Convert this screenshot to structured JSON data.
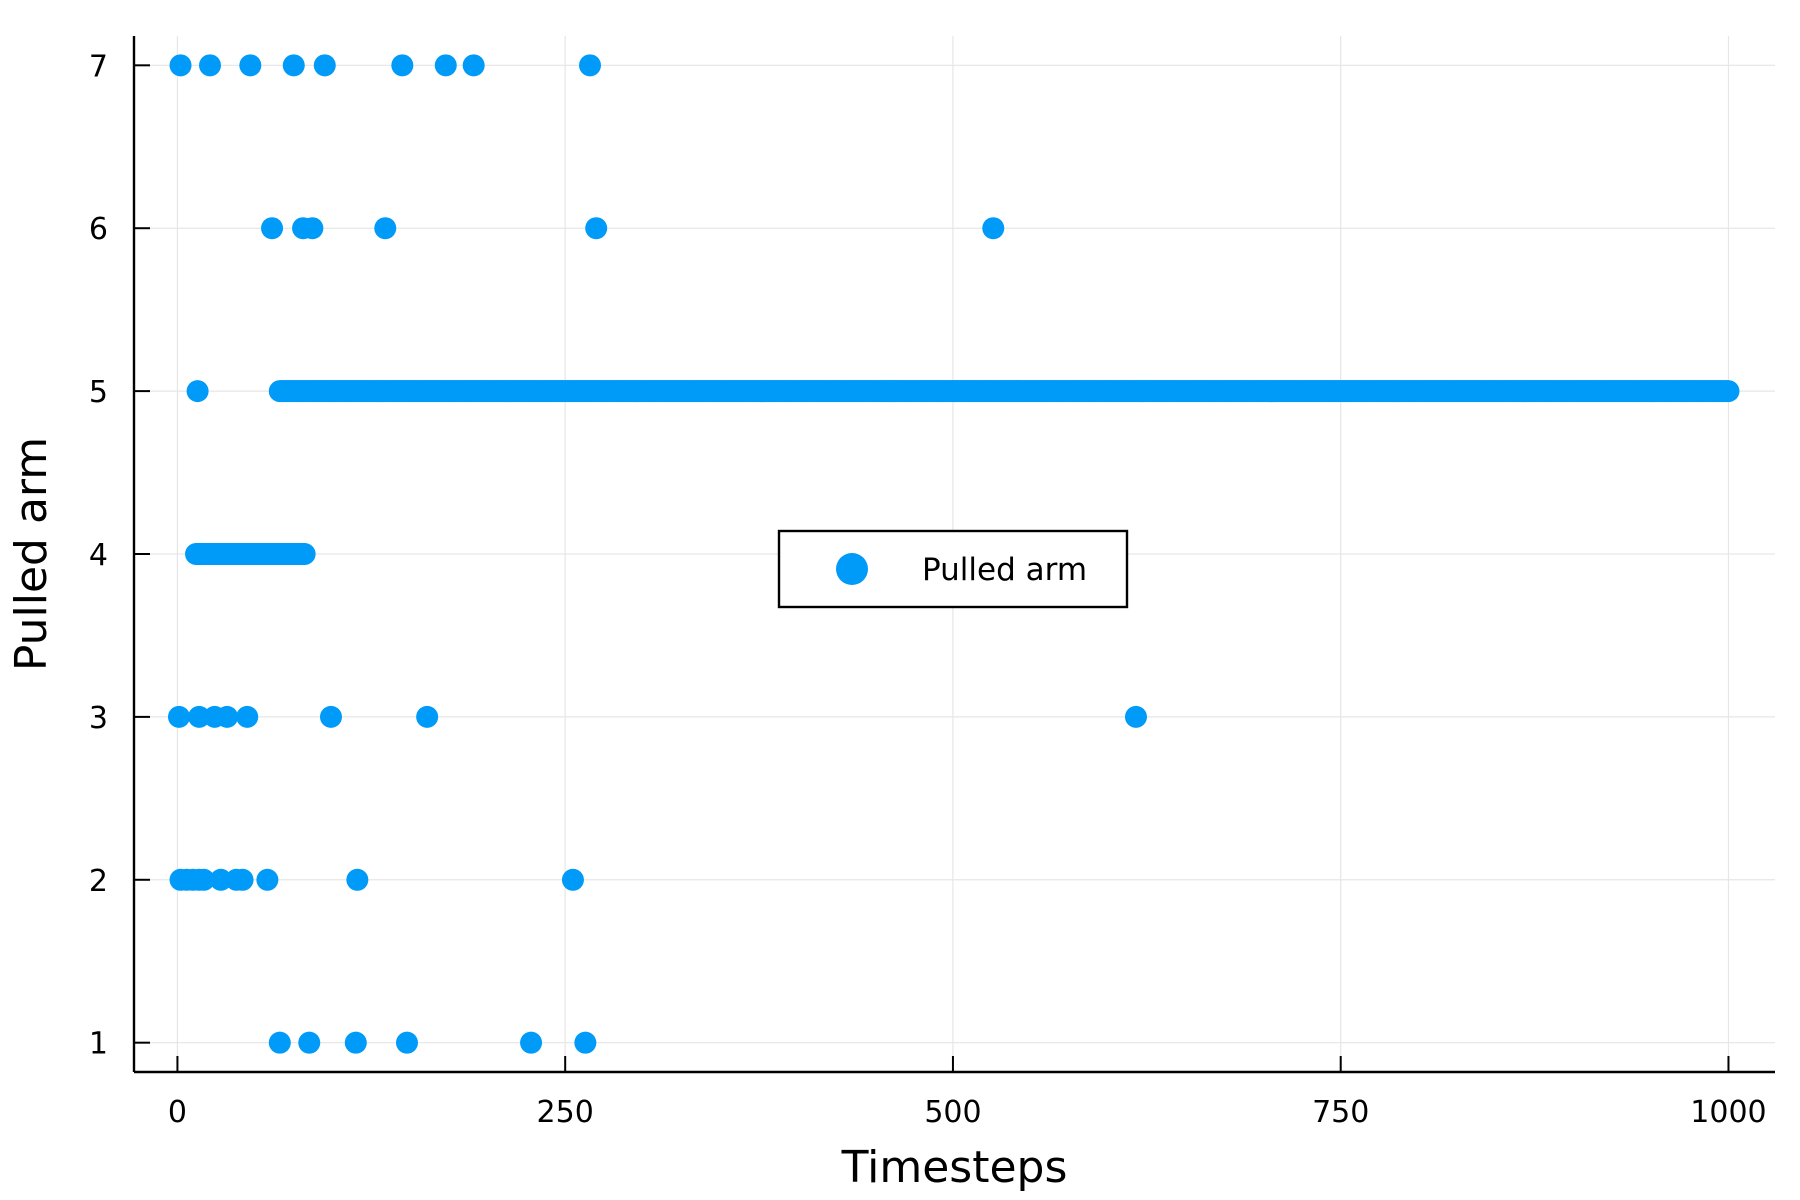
{
  "chart_data": {
    "type": "scatter",
    "xlabel": "Timesteps",
    "ylabel": "Pulled arm",
    "xlim": [
      -28,
      1030
    ],
    "ylim": [
      0.82,
      7.18
    ],
    "xticks": [
      0,
      250,
      500,
      750,
      1000
    ],
    "yticks": [
      1,
      2,
      3,
      4,
      5,
      6,
      7
    ],
    "grid": true,
    "legend_position": "center",
    "colors": {
      "series": "#009af9",
      "axes": "#000000",
      "grid": "#e6e6e6"
    },
    "series": [
      {
        "name": "Pulled arm",
        "points": [
          [
            2,
            7
          ],
          [
            21,
            7
          ],
          [
            47,
            7
          ],
          [
            75,
            7
          ],
          [
            95,
            7
          ],
          [
            145,
            7
          ],
          [
            173,
            7
          ],
          [
            191,
            7
          ],
          [
            266,
            7
          ],
          [
            61,
            6
          ],
          [
            81,
            6
          ],
          [
            87,
            6
          ],
          [
            134,
            6
          ],
          [
            270,
            6
          ],
          [
            526,
            6
          ],
          [
            13,
            5
          ],
          [
            1,
            3
          ],
          [
            14,
            3
          ],
          [
            24,
            3
          ],
          [
            32,
            3
          ],
          [
            45,
            3
          ],
          [
            99,
            3
          ],
          [
            161,
            3
          ],
          [
            618,
            3
          ],
          [
            2,
            2
          ],
          [
            6,
            2
          ],
          [
            10,
            2
          ],
          [
            14,
            2
          ],
          [
            17,
            2
          ],
          [
            28,
            2
          ],
          [
            38,
            2
          ],
          [
            42,
            2
          ],
          [
            58,
            2
          ],
          [
            116,
            2
          ],
          [
            255,
            2
          ],
          [
            66,
            1
          ],
          [
            85,
            1
          ],
          [
            115,
            1
          ],
          [
            148,
            1
          ],
          [
            228,
            1
          ],
          [
            263,
            1
          ]
        ],
        "dense_runs": [
          {
            "y": 4,
            "from": 12,
            "to": 82,
            "step": 1
          },
          {
            "y": 5,
            "from": 66,
            "to": 1000,
            "step": 1
          }
        ]
      }
    ]
  }
}
